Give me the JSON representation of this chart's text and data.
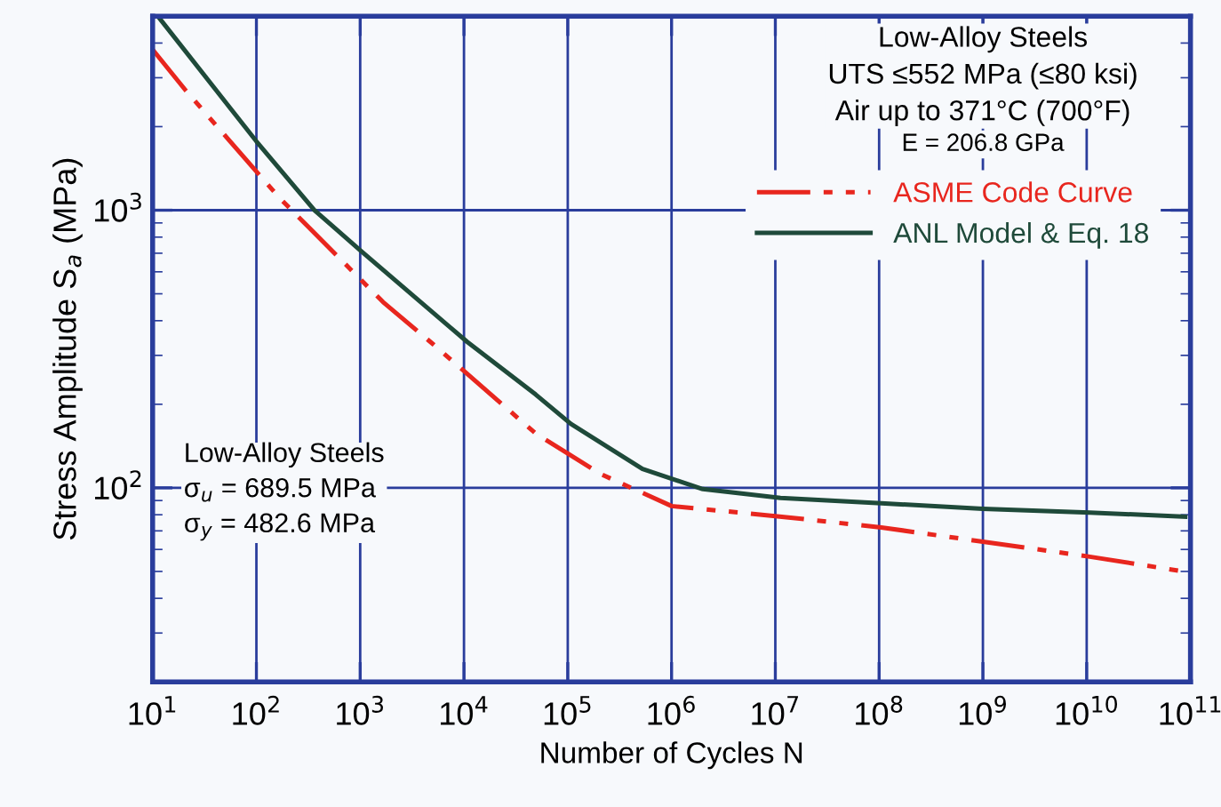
{
  "chart_data": {
    "type": "line",
    "xlabel": "Number of Cycles N",
    "ylabel": "Stress Amplitude S$_{a}$ (MPa)",
    "log": "xy",
    "xlim": [
      10,
      100000000000
    ],
    "ylim": [
      20,
      5000
    ],
    "xticks": [
      {
        "value": 10,
        "label": "10$^{1}$"
      },
      {
        "value": 100,
        "label": "10$^{2}$"
      },
      {
        "value": 1000,
        "label": "10$^{3}$"
      },
      {
        "value": 10000,
        "label": "10$^{4}$"
      },
      {
        "value": 100000,
        "label": "10$^{5}$"
      },
      {
        "value": 1000000,
        "label": "10$^{6}$"
      },
      {
        "value": 10000000,
        "label": "10$^{7}$"
      },
      {
        "value": 100000000,
        "label": "10$^{8}$"
      },
      {
        "value": 1000000000,
        "label": "10$^{9}$"
      },
      {
        "value": 10000000000,
        "label": "10$^{10}$"
      },
      {
        "value": 100000000000,
        "label": "10$^{11}$"
      }
    ],
    "yticks": [
      {
        "value": 100,
        "label": "10$^{2}$"
      },
      {
        "value": 1000,
        "label": "10$^{3}$"
      }
    ],
    "grid": true,
    "legend": "top right",
    "marker": "none",
    "series": [
      {
        "name": "ASME Code Curve",
        "color": "#e8261e",
        "line_style": "dashed",
        "x": [
          10,
          21,
          166,
          1660,
          5100,
          49000,
          209000,
          1000000,
          10500000,
          105000000,
          1000000000,
          10700000000,
          85000000000
        ],
        "values": [
          3790,
          2690,
          1110,
          467,
          328,
          157,
          112,
          86,
          79,
          72,
          64,
          56.5,
          50
        ]
      },
      {
        "name": "ANL Model & Eq. 18",
        "color": "#1f4a3a",
        "line_style": "solid",
        "x": [
          11.7,
          100,
          363,
          1000,
          10700,
          49000,
          107000,
          525000,
          2000000,
          11200000,
          105000000,
          1000000000,
          10700000000,
          89000000000
        ],
        "values": [
          4900,
          1770,
          1000,
          717,
          336,
          217,
          170,
          117,
          99,
          92,
          88,
          84,
          81.5,
          78.7
        ]
      }
    ],
    "annotations": [
      "Low-Alloy Steels\nUTS ≤552 MPa (≤80 ksi)\nAir up to 371°C (700°F)",
      "E = 206.8 GPa",
      "Low-Alloy Steels\nσ$_{u}$ = 689.5 MPa\nσ$_{y}$ = 482.6 MPa"
    ]
  }
}
